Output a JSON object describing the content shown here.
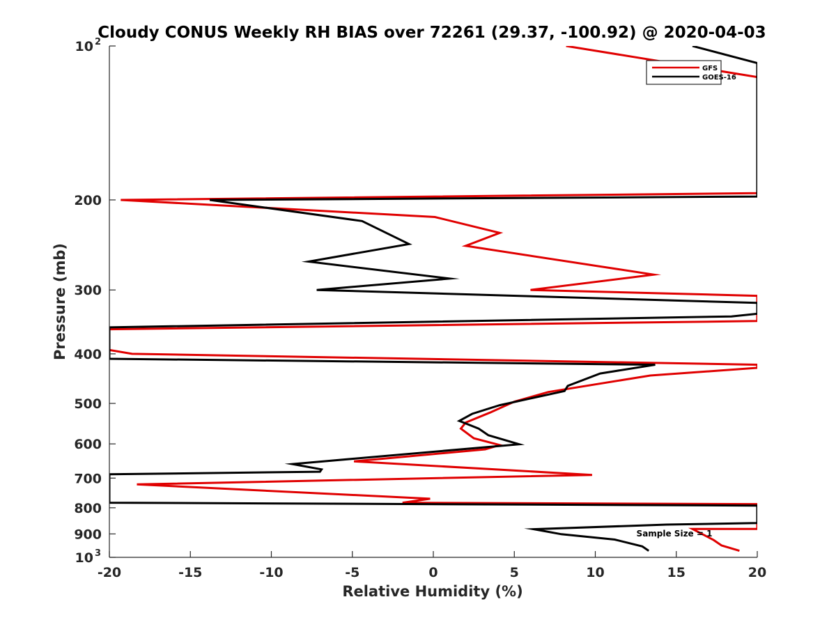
{
  "chart_data": {
    "type": "line",
    "title": "Cloudy CONUS Weekly RH BIAS over 72261 (29.37, -100.92) @ 2020-04-03",
    "xlabel": "Relative Humidity (%)",
    "ylabel": "Pressure (mb)",
    "xlim": [
      -20,
      20
    ],
    "ylim": [
      100,
      1000
    ],
    "y_scale": "log",
    "y_reversed": true,
    "grid": false,
    "legend_position": "top-right",
    "x_ticks": [
      "-20",
      "-15",
      "-10",
      "-5",
      "0",
      "5",
      "10",
      "15",
      "20"
    ],
    "y_ticks": [
      {
        "value": 100,
        "label": "10",
        "sup": "2"
      },
      {
        "value": 200,
        "label": "200"
      },
      {
        "value": 300,
        "label": "300"
      },
      {
        "value": 400,
        "label": "400"
      },
      {
        "value": 500,
        "label": "500"
      },
      {
        "value": 600,
        "label": "600"
      },
      {
        "value": 700,
        "label": "700"
      },
      {
        "value": 800,
        "label": "800"
      },
      {
        "value": 900,
        "label": "900"
      },
      {
        "value": 1000,
        "label": "10",
        "sup": "3"
      }
    ],
    "series": [
      {
        "name": "GFS",
        "color": "#e00000",
        "points": [
          [
            8.2,
            100
          ],
          [
            20,
            115
          ],
          [
            20,
            194
          ],
          [
            -19.3,
            200
          ],
          [
            0.1,
            216
          ],
          [
            4.1,
            232
          ],
          [
            2.0,
            246
          ],
          [
            13.6,
            280
          ],
          [
            6.0,
            300
          ],
          [
            20,
            308
          ],
          [
            20,
            345
          ],
          [
            -20,
            358
          ],
          [
            -20,
            393
          ],
          [
            -18.6,
            400
          ],
          [
            20,
            420
          ],
          [
            20,
            426
          ],
          [
            13.4,
            441
          ],
          [
            7.1,
            475
          ],
          [
            5.0,
            496
          ],
          [
            3.5,
            521
          ],
          [
            2.0,
            545
          ],
          [
            1.7,
            560
          ],
          [
            2.5,
            585
          ],
          [
            4.1,
            603
          ],
          [
            3.2,
            615
          ],
          [
            -4.9,
            649
          ],
          [
            9.8,
            690
          ],
          [
            -18.3,
            720
          ],
          [
            -0.2,
            768
          ],
          [
            -1.9,
            782
          ],
          [
            20,
            787
          ],
          [
            20,
            880
          ],
          [
            16.0,
            880
          ],
          [
            17.3,
            925
          ],
          [
            17.8,
            948
          ],
          [
            18.9,
            971
          ]
        ]
      },
      {
        "name": "GOES-16",
        "color": "#000000",
        "points": [
          [
            16.0,
            100
          ],
          [
            20,
            108
          ],
          [
            20,
            197
          ],
          [
            -13.8,
            200
          ],
          [
            -4.4,
            220
          ],
          [
            -1.5,
            244
          ],
          [
            -7.7,
            264
          ],
          [
            1.0,
            285
          ],
          [
            -7.2,
            300
          ],
          [
            20,
            318
          ],
          [
            20,
            334
          ],
          [
            18.4,
            338
          ],
          [
            -20,
            355
          ],
          [
            -20,
            409
          ],
          [
            13.7,
            420
          ],
          [
            10.3,
            437
          ],
          [
            8.3,
            462
          ],
          [
            8.1,
            473
          ],
          [
            4.1,
            504
          ],
          [
            2.4,
            524
          ],
          [
            1.6,
            541
          ],
          [
            2.8,
            560
          ],
          [
            3.4,
            577
          ],
          [
            5.3,
            601
          ],
          [
            -8.7,
            657
          ],
          [
            -6.9,
            673
          ],
          [
            -7.0,
            680
          ],
          [
            -20,
            688
          ],
          [
            -20,
            782
          ],
          [
            20,
            792
          ],
          [
            20,
            857
          ],
          [
            14.4,
            863
          ],
          [
            6.2,
            881
          ],
          [
            7.9,
            901
          ],
          [
            11.2,
            923
          ],
          [
            12.9,
            952
          ],
          [
            13.3,
            971
          ]
        ]
      }
    ],
    "annotations": [
      {
        "text": "Sample Size = 1"
      }
    ]
  }
}
